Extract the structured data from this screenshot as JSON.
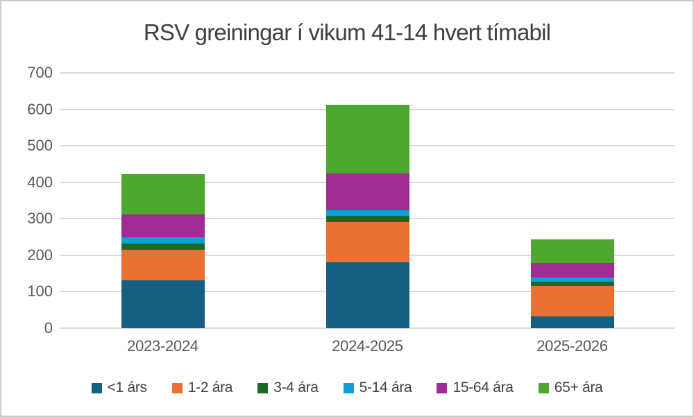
{
  "page": {
    "background": "#FFFFFF",
    "border_color": "#CBCBCB"
  },
  "chart_data": {
    "type": "bar",
    "stacked": true,
    "title": "RSV greiningar í vikum 41-14 hvert tímabil",
    "title_color": "#3F3F3F",
    "categories": [
      "2023-2024",
      "2024-2025",
      "2025-2026"
    ],
    "series": [
      {
        "name": "<1 árs",
        "color": "#156082",
        "values": [
          132,
          180,
          32
        ]
      },
      {
        "name": "1-2 ára",
        "color": "#E97132",
        "values": [
          83,
          111,
          85
        ]
      },
      {
        "name": "3-4 ára",
        "color": "#196B24",
        "values": [
          17,
          18,
          10
        ]
      },
      {
        "name": "5-14 ára",
        "color": "#0F9ED5",
        "values": [
          17,
          15,
          11
        ]
      },
      {
        "name": "15-64 ára",
        "color": "#A02B93",
        "values": [
          63,
          101,
          40
        ]
      },
      {
        "name": "65+ ára",
        "color": "#4EA72E",
        "values": [
          110,
          187,
          66
        ]
      }
    ],
    "xlabel": "",
    "ylabel": "",
    "ylim": [
      0,
      700
    ],
    "y_ticks": [
      0,
      100,
      200,
      300,
      400,
      500,
      600,
      700
    ],
    "grid": true,
    "gridline_color": "#DADADA",
    "axis_label_color": "#595959",
    "legend_position": "bottom"
  }
}
